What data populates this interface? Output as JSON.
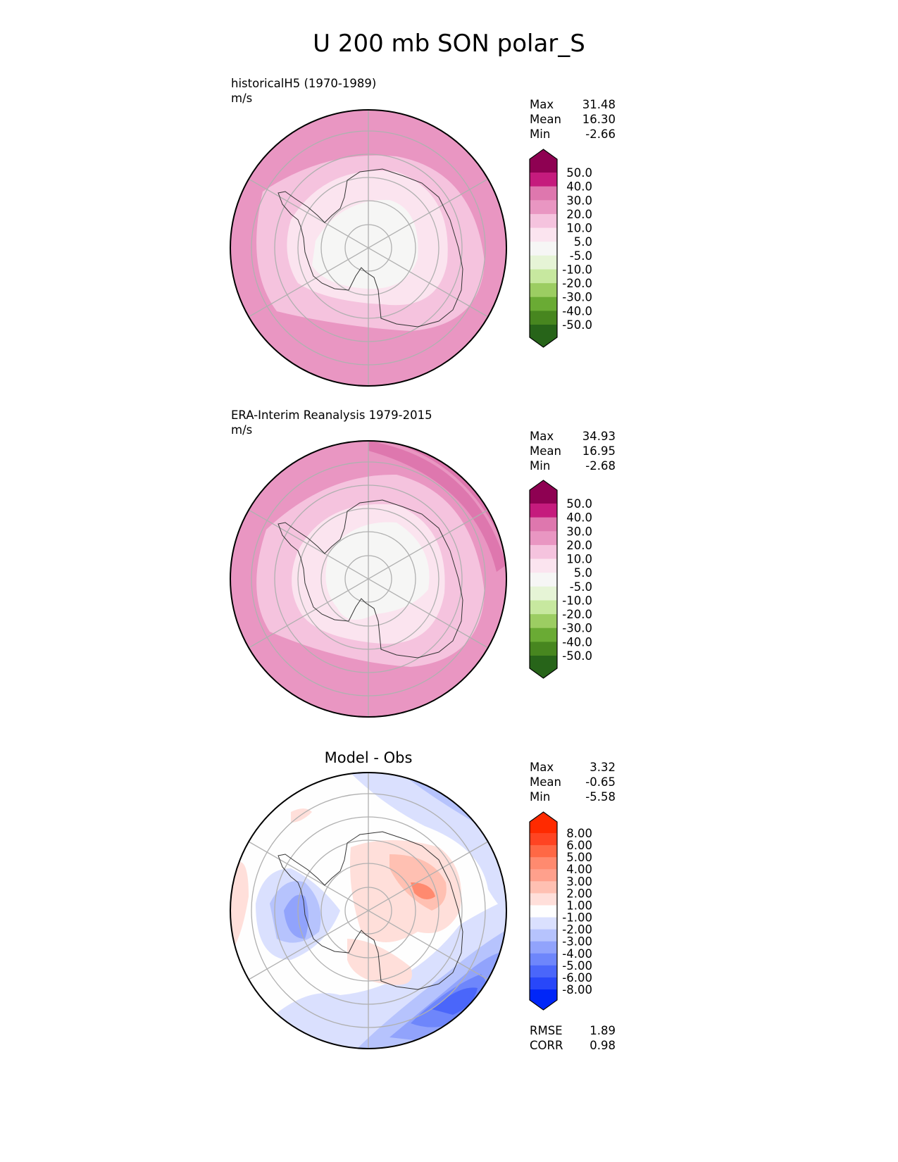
{
  "title": "U 200 mb SON polar_S",
  "chart_data": [
    {
      "type": "heatmap",
      "projection": "south-polar-stereographic",
      "title_left": "historicalH5 (1970-1989)",
      "units": "m/s",
      "stats": [
        {
          "label": "Max",
          "value": "31.48"
        },
        {
          "label": "Mean",
          "value": "16.30"
        },
        {
          "label": "Min",
          "value": "-2.66"
        }
      ],
      "colorbar": {
        "levels": [
          "50.0",
          "40.0",
          "30.0",
          "20.0",
          "10.0",
          "5.0",
          "-5.0",
          "-10.0",
          "-20.0",
          "-30.0",
          "-40.0",
          "-50.0"
        ],
        "colors": [
          "#8e0152",
          "#c51b7d",
          "#de77ae",
          "#e996c2",
          "#f5c3de",
          "#fbe4ef",
          "#f6f6f5",
          "#e6f4d6",
          "#c7e89f",
          "#9ccd62",
          "#6aab34",
          "#47861f",
          "#276419"
        ]
      }
    },
    {
      "type": "heatmap",
      "projection": "south-polar-stereographic",
      "title_left": "ERA-Interim Reanalysis 1979-2015",
      "units": "m/s",
      "stats": [
        {
          "label": "Max",
          "value": "34.93"
        },
        {
          "label": "Mean",
          "value": "16.95"
        },
        {
          "label": "Min",
          "value": "-2.68"
        }
      ],
      "colorbar": {
        "levels": [
          "50.0",
          "40.0",
          "30.0",
          "20.0",
          "10.0",
          "5.0",
          "-5.0",
          "-10.0",
          "-20.0",
          "-30.0",
          "-40.0",
          "-50.0"
        ],
        "colors": [
          "#8e0152",
          "#c51b7d",
          "#de77ae",
          "#e996c2",
          "#f5c3de",
          "#fbe4ef",
          "#f6f6f5",
          "#e6f4d6",
          "#c7e89f",
          "#9ccd62",
          "#6aab34",
          "#47861f",
          "#276419"
        ]
      }
    },
    {
      "type": "heatmap",
      "projection": "south-polar-stereographic",
      "title_center": "Model - Obs",
      "stats": [
        {
          "label": "Max",
          "value": "3.32"
        },
        {
          "label": "Mean",
          "value": "-0.65"
        },
        {
          "label": "Min",
          "value": "-5.58"
        }
      ],
      "metrics": [
        {
          "label": "RMSE",
          "value": "1.89"
        },
        {
          "label": "CORR",
          "value": "0.98"
        }
      ],
      "colorbar": {
        "levels": [
          "8.00",
          "6.00",
          "5.00",
          "4.00",
          "3.00",
          "2.00",
          "1.00",
          "-1.00",
          "-2.00",
          "-3.00",
          "-4.00",
          "-5.00",
          "-6.00",
          "-8.00"
        ],
        "colors": [
          "#ff2a00",
          "#ff4422",
          "#ff6845",
          "#ff8a6f",
          "#ffa08c",
          "#ffc0b2",
          "#ffdfda",
          "#fefefe",
          "#dae0fe",
          "#b6c3fd",
          "#91a3fc",
          "#6e86fb",
          "#4a66fa",
          "#2847f9",
          "#0026f8"
        ]
      }
    }
  ]
}
